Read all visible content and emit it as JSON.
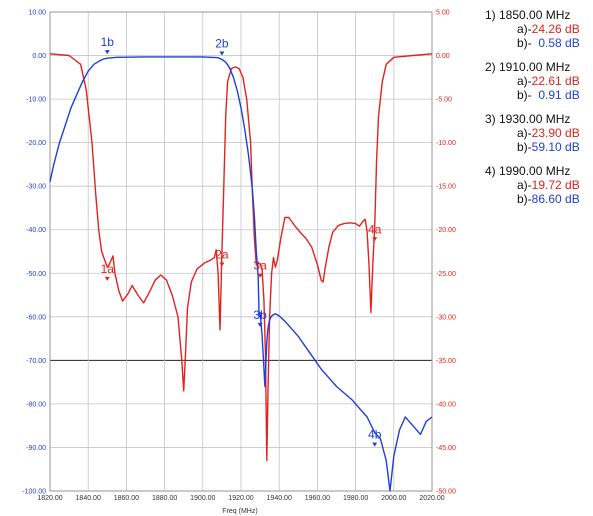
{
  "chart_data": {
    "type": "line",
    "xlabel": "Freq (MHz)",
    "xlim": [
      1820,
      2020
    ],
    "x_ticks": [
      "1820.00",
      "1840.00",
      "1860.00",
      "1880.00",
      "1900.00",
      "1920.00",
      "1940.00",
      "1960.00",
      "1980.00",
      "2000.00",
      "2020.00"
    ],
    "y_left": {
      "lim": [
        -100,
        10
      ],
      "ticks": [
        "10.00",
        "0.00",
        "-10.00",
        "-20.00",
        "-30.00",
        "-40.00",
        "-50.00",
        "-60.00",
        "-70.00",
        "-80.00",
        "-90.00",
        "-100.00"
      ],
      "color": "#1f3fd8"
    },
    "y_right": {
      "lim": [
        -50,
        5
      ],
      "ticks": [
        "5.00",
        "0.00",
        "-5.00",
        "-10.00",
        "-15.00",
        "-20.00",
        "-25.00",
        "-30.00",
        "-35.00",
        "-40.00",
        "-45.00",
        "-50.00"
      ],
      "color": "#e0231e"
    },
    "grid": true,
    "series": [
      {
        "axis": "right",
        "color": "#e0231e",
        "points": [
          [
            1820,
            0.2
          ],
          [
            1830,
            0
          ],
          [
            1836,
            -1
          ],
          [
            1839,
            -4
          ],
          [
            1842,
            -10
          ],
          [
            1844,
            -16
          ],
          [
            1845.5,
            -20
          ],
          [
            1847,
            -22.5
          ],
          [
            1849,
            -23.7
          ],
          [
            1850,
            -24.3
          ],
          [
            1851,
            -24
          ],
          [
            1853,
            -23
          ],
          [
            1854,
            -25
          ],
          [
            1856,
            -27
          ],
          [
            1858,
            -28.2
          ],
          [
            1861,
            -27.3
          ],
          [
            1863,
            -26.4
          ],
          [
            1866,
            -27.5
          ],
          [
            1869,
            -28.4
          ],
          [
            1872,
            -27.2
          ],
          [
            1875,
            -25.8
          ],
          [
            1878,
            -25.2
          ],
          [
            1881,
            -25.8
          ],
          [
            1884,
            -27.5
          ],
          [
            1887,
            -30
          ],
          [
            1889,
            -35
          ],
          [
            1890,
            -38.5
          ],
          [
            1891,
            -34
          ],
          [
            1892,
            -29
          ],
          [
            1894,
            -26
          ],
          [
            1897,
            -24.5
          ],
          [
            1901,
            -23.8
          ],
          [
            1904,
            -23.5
          ],
          [
            1906,
            -23.2
          ],
          [
            1907,
            -22.3
          ],
          [
            1908,
            -25
          ],
          [
            1909,
            -31.5
          ],
          [
            1910,
            -22.6
          ],
          [
            1911,
            -15
          ],
          [
            1912,
            -7
          ],
          [
            1913,
            -3
          ],
          [
            1915,
            -1.5
          ],
          [
            1917,
            -1.3
          ],
          [
            1919,
            -1.5
          ],
          [
            1921,
            -2.5
          ],
          [
            1923,
            -5
          ],
          [
            1925,
            -10
          ],
          [
            1926,
            -16
          ],
          [
            1927,
            -21
          ],
          [
            1928,
            -24
          ],
          [
            1929,
            -23.9
          ],
          [
            1930,
            -23.9
          ],
          [
            1931,
            -24.5
          ],
          [
            1932,
            -28
          ],
          [
            1932.8,
            -34
          ],
          [
            1933.5,
            -46.5
          ],
          [
            1934.2,
            -38
          ],
          [
            1935,
            -30
          ],
          [
            1936,
            -25
          ],
          [
            1937,
            -23.2
          ],
          [
            1938,
            -24.3
          ],
          [
            1939,
            -23.5
          ],
          [
            1941,
            -20.8
          ],
          [
            1943,
            -18.6
          ],
          [
            1945,
            -18.6
          ],
          [
            1948,
            -19.5
          ],
          [
            1951,
            -20.3
          ],
          [
            1954,
            -21
          ],
          [
            1957,
            -22
          ],
          [
            1960,
            -24
          ],
          [
            1962,
            -25.8
          ],
          [
            1963,
            -26
          ],
          [
            1964,
            -24.5
          ],
          [
            1966,
            -22
          ],
          [
            1968,
            -20.3
          ],
          [
            1971,
            -19.5
          ],
          [
            1974,
            -19.3
          ],
          [
            1977,
            -19.2
          ],
          [
            1980,
            -19.3
          ],
          [
            1982,
            -19.6
          ],
          [
            1984,
            -19
          ],
          [
            1985,
            -18.8
          ],
          [
            1986,
            -20.2
          ],
          [
            1987,
            -24
          ],
          [
            1988,
            -29.5
          ],
          [
            1989,
            -24
          ],
          [
            1990,
            -19.7
          ],
          [
            1991,
            -12
          ],
          [
            1992,
            -7
          ],
          [
            1994,
            -3
          ],
          [
            1996,
            -1
          ],
          [
            2000,
            -0.2
          ],
          [
            2010,
            0
          ],
          [
            2020,
            0.2
          ]
        ]
      },
      {
        "axis": "left",
        "color": "#1f3fd8",
        "points": [
          [
            1820,
            -29
          ],
          [
            1822,
            -25
          ],
          [
            1825,
            -20
          ],
          [
            1828,
            -16
          ],
          [
            1831,
            -12
          ],
          [
            1834,
            -9
          ],
          [
            1837,
            -6
          ],
          [
            1840,
            -3.6
          ],
          [
            1843,
            -2
          ],
          [
            1846,
            -1.2
          ],
          [
            1848,
            -0.8
          ],
          [
            1850,
            -0.6
          ],
          [
            1855,
            -0.4
          ],
          [
            1870,
            -0.3
          ],
          [
            1885,
            -0.3
          ],
          [
            1900,
            -0.3
          ],
          [
            1908,
            -0.5
          ],
          [
            1910,
            -0.9
          ],
          [
            1912,
            -1.5
          ],
          [
            1914,
            -2.8
          ],
          [
            1916,
            -5
          ],
          [
            1918,
            -8
          ],
          [
            1920,
            -12
          ],
          [
            1922,
            -17
          ],
          [
            1924,
            -23
          ],
          [
            1926,
            -31
          ],
          [
            1927,
            -37
          ],
          [
            1928,
            -45
          ],
          [
            1929,
            -51
          ],
          [
            1929.5,
            -60
          ],
          [
            1930,
            -59
          ],
          [
            1931,
            -64
          ],
          [
            1931.8,
            -70
          ],
          [
            1932.5,
            -76
          ],
          [
            1933,
            -71
          ],
          [
            1933.5,
            -66
          ],
          [
            1934,
            -63
          ],
          [
            1934.8,
            -61
          ],
          [
            1935.5,
            -60.2
          ],
          [
            1936.5,
            -59.6
          ],
          [
            1938,
            -59.3
          ],
          [
            1940,
            -59.8
          ],
          [
            1943,
            -61
          ],
          [
            1946,
            -62.5
          ],
          [
            1950,
            -64.5
          ],
          [
            1954,
            -67
          ],
          [
            1958,
            -69.5
          ],
          [
            1962,
            -72
          ],
          [
            1966,
            -74
          ],
          [
            1970,
            -76
          ],
          [
            1974,
            -77.5
          ],
          [
            1978,
            -79
          ],
          [
            1982,
            -81
          ],
          [
            1986,
            -83
          ],
          [
            1990,
            -86.6
          ],
          [
            1993,
            -88
          ],
          [
            1996,
            -93
          ],
          [
            1998,
            -100
          ],
          [
            2000,
            -92
          ],
          [
            2003,
            -86
          ],
          [
            2006,
            -83
          ],
          [
            2010,
            -85
          ],
          [
            2014,
            -87
          ],
          [
            2017,
            -84
          ],
          [
            2020,
            -83
          ]
        ]
      }
    ],
    "markers": [
      {
        "label": "1a",
        "x": 1850,
        "value": -24.26,
        "axis": "right",
        "color": "#e0231e"
      },
      {
        "label": "1b",
        "x": 1850,
        "value": -0.58,
        "axis": "left",
        "color": "#1f3fd8"
      },
      {
        "label": "2a",
        "x": 1910,
        "value": -22.61,
        "axis": "right",
        "color": "#e0231e"
      },
      {
        "label": "2b",
        "x": 1910,
        "value": -0.91,
        "axis": "left",
        "color": "#1f3fd8"
      },
      {
        "label": "3a",
        "x": 1930,
        "value": -23.9,
        "axis": "right",
        "color": "#e0231e"
      },
      {
        "label": "3b",
        "x": 1930,
        "value": -59.1,
        "axis": "left",
        "color": "#1f3fd8"
      },
      {
        "label": "4a",
        "x": 1990,
        "value": -19.72,
        "axis": "right",
        "color": "#e0231e"
      },
      {
        "label": "4b",
        "x": 1990,
        "value": -86.6,
        "axis": "left",
        "color": "#1f3fd8"
      }
    ]
  },
  "legend": [
    {
      "title": "1) 1850.00 MHz",
      "a_prefix": "a)-",
      "a_value": "24.26 dB",
      "b_prefix": "b)-",
      "b_value": "  0.58 dB"
    },
    {
      "title": "2) 1910.00 MHz",
      "a_prefix": "a)-",
      "a_value": "22.61 dB",
      "b_prefix": "b)-",
      "b_value": "  0.91 dB"
    },
    {
      "title": "3) 1930.00 MHz",
      "a_prefix": "a)-",
      "a_value": "23.90 dB",
      "b_prefix": "b)-",
      "b_value": "59.10 dB"
    },
    {
      "title": "4) 1990.00 MHz",
      "a_prefix": "a)-",
      "a_value": "19.72 dB",
      "b_prefix": "b)-",
      "b_value": "86.60 dB"
    }
  ]
}
